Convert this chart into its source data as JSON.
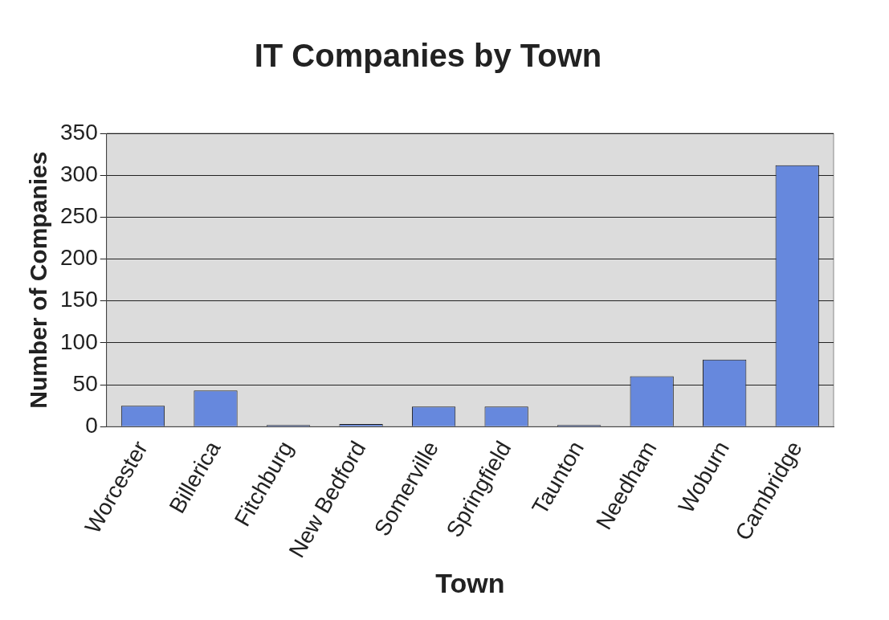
{
  "chart_data": {
    "type": "bar",
    "title": "IT Companies by Town",
    "xlabel": "Town",
    "ylabel": "Number of Companies",
    "categories": [
      "Worcester",
      "Billerica",
      "Fitchburg",
      "New Bedford",
      "Somerville",
      "Springfield",
      "Taunton",
      "Needham",
      "Woburn",
      "Cambridge"
    ],
    "values": [
      25,
      43,
      2,
      3,
      24,
      24,
      2,
      60,
      80,
      312
    ],
    "color": "#6688dd",
    "ylim": [
      0,
      350
    ],
    "yticks": [
      0,
      50,
      100,
      150,
      200,
      250,
      300,
      350
    ],
    "grid": "y",
    "legend": false
  }
}
